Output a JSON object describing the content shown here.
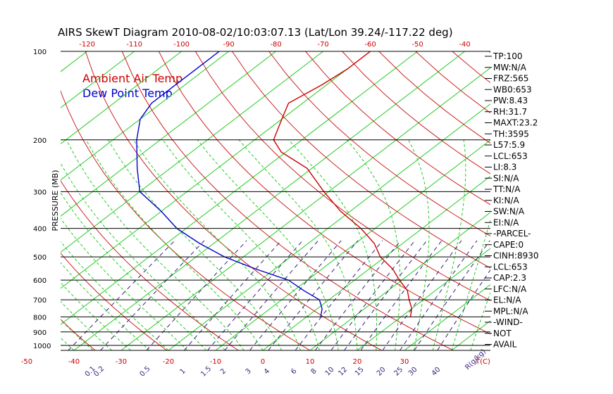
{
  "title": "AIRS SkewT Diagram 2010-08-02/10:03:07.13 (Lat/Lon 39.24/-117.22 deg)",
  "colors": {
    "air_temp": "#cc0000",
    "dew_point": "#0000cc",
    "dry_adiabat": "#cc2222",
    "moist_adiabat": "#22cc22",
    "mixing_ratio": "#3a1f7a",
    "isotherm": "#22cc22",
    "isobar": "#000000"
  },
  "chart_data": {
    "type": "line",
    "diagram": "skew-T log-P",
    "ylabel": "PRESSURE (MB)",
    "xlabel": "T(C)",
    "mixing_ratio_unit": "R(g/kg)",
    "yscale": "log",
    "ylim": [
      1000,
      100
    ],
    "pressure_ticks": [
      100,
      200,
      300,
      400,
      500,
      600,
      700,
      800,
      900,
      1000
    ],
    "bottom_temp_ticks": [
      -50,
      -40,
      -30,
      -20,
      -10,
      0,
      10,
      20,
      30
    ],
    "top_temp_ticks": [
      -120,
      -110,
      -100,
      -90,
      -80,
      -70,
      -60,
      -50,
      -40
    ],
    "mixing_ratio_ticks": [
      "0.1",
      "0.2",
      "0.5",
      "1",
      "1.5",
      "2",
      "3",
      "4",
      "6",
      "8",
      "10",
      "12",
      "15",
      "20",
      "25",
      "30",
      "40"
    ],
    "legend": [
      "Ambient Air Temp",
      "Dew Point Temp"
    ],
    "series": [
      {
        "name": "Ambient Air Temp",
        "points": [
          {
            "p": 800,
            "t": 22
          },
          {
            "p": 750,
            "t": 20
          },
          {
            "p": 700,
            "t": 17
          },
          {
            "p": 650,
            "t": 14
          },
          {
            "p": 600,
            "t": 9.5
          },
          {
            "p": 550,
            "t": 5
          },
          {
            "p": 500,
            "t": -1
          },
          {
            "p": 450,
            "t": -6
          },
          {
            "p": 400,
            "t": -13
          },
          {
            "p": 350,
            "t": -22
          },
          {
            "p": 300,
            "t": -31
          },
          {
            "p": 250,
            "t": -41
          },
          {
            "p": 220,
            "t": -51
          },
          {
            "p": 200,
            "t": -56
          },
          {
            "p": 170,
            "t": -60
          },
          {
            "p": 150,
            "t": -63
          },
          {
            "p": 130,
            "t": -61
          },
          {
            "p": 115,
            "t": -60
          },
          {
            "p": 100,
            "t": -60
          }
        ]
      },
      {
        "name": "Dew Point Temp",
        "points": [
          {
            "p": 800,
            "t": 3
          },
          {
            "p": 750,
            "t": 1
          },
          {
            "p": 700,
            "t": -2
          },
          {
            "p": 650,
            "t": -8
          },
          {
            "p": 600,
            "t": -14
          },
          {
            "p": 550,
            "t": -24
          },
          {
            "p": 500,
            "t": -34
          },
          {
            "p": 450,
            "t": -43
          },
          {
            "p": 400,
            "t": -52
          },
          {
            "p": 350,
            "t": -60
          },
          {
            "p": 300,
            "t": -70
          },
          {
            "p": 250,
            "t": -77
          },
          {
            "p": 200,
            "t": -85
          },
          {
            "p": 170,
            "t": -90
          },
          {
            "p": 150,
            "t": -92
          },
          {
            "p": 130,
            "t": -92
          },
          {
            "p": 115,
            "t": -92
          },
          {
            "p": 100,
            "t": -92
          }
        ]
      }
    ],
    "indices": [
      "TP:100",
      "MW:N/A",
      "FRZ:565",
      "WB0:653",
      "PW:8.43",
      "RH:31.7",
      "MAXT:23.2",
      "TH:3595",
      "L57:5.9",
      "LCL:653",
      "LI:8.3",
      "SI:N/A",
      "TT:N/A",
      "KI:N/A",
      "SW:N/A",
      "EI:N/A",
      "-PARCEL-",
      "CAPE:0",
      "CINH:8930",
      "LCL:653",
      "CAP:2.3",
      "LFC:N/A",
      "EL:N/A",
      "MPL:N/A",
      "-WIND-",
      "NOT",
      "AVAIL"
    ]
  }
}
